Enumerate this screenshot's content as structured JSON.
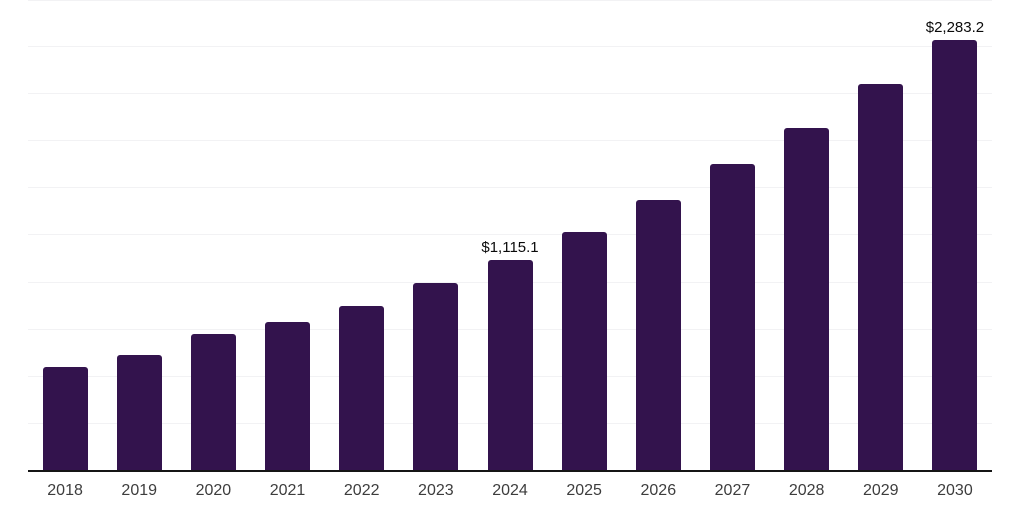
{
  "chart": {
    "background_color": "#ffffff",
    "bar_color": "#33134d",
    "axis_line_color": "#151515",
    "gridline_color": "#f2f2f4",
    "value_label_color": "#0a0a0a",
    "tick_label_color": "#3d3d3d"
  },
  "chart_data": {
    "type": "bar",
    "title": "",
    "xlabel": "",
    "ylabel": "",
    "categories": [
      "2018",
      "2019",
      "2020",
      "2021",
      "2022",
      "2023",
      "2024",
      "2025",
      "2026",
      "2027",
      "2028",
      "2029",
      "2030"
    ],
    "values": [
      546,
      609,
      721,
      786,
      868,
      991,
      1115.1,
      1264,
      1433,
      1624,
      1815,
      2046,
      2283.2
    ],
    "value_labels": [
      "",
      "",
      "",
      "",
      "",
      "",
      "$1,115.1",
      "",
      "",
      "",
      "",
      "",
      "$2,283.2"
    ],
    "ylim": [
      0,
      2500
    ],
    "gridline_values": [
      250,
      500,
      750,
      1000,
      1250,
      1500,
      1750,
      2000,
      2250,
      2500
    ],
    "grid": "horizontal",
    "legend_position": "none"
  }
}
